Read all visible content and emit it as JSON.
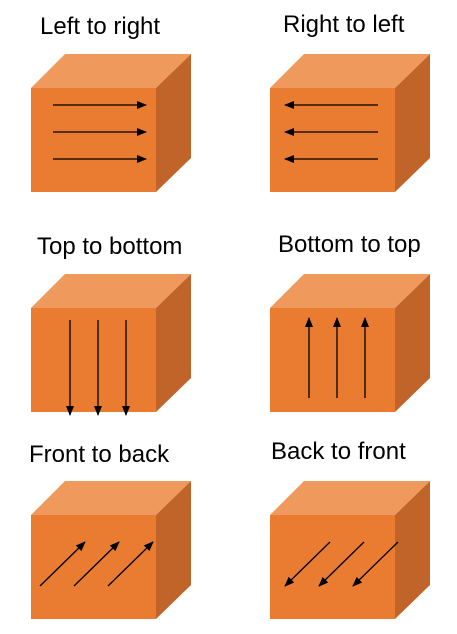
{
  "colors": {
    "front": "#E97C30",
    "top": "#F0995C",
    "side": "#C0642A",
    "arrow": "#000000"
  },
  "panels": [
    {
      "label": "Left to right",
      "direction": "left-to-right"
    },
    {
      "label": "Right to left",
      "direction": "right-to-left"
    },
    {
      "label": "Top to bottom",
      "direction": "top-to-bottom"
    },
    {
      "label": "Bottom to top",
      "direction": "bottom-to-top"
    },
    {
      "label": "Front to back",
      "direction": "front-to-back"
    },
    {
      "label": "Back to front",
      "direction": "back-to-front"
    }
  ]
}
